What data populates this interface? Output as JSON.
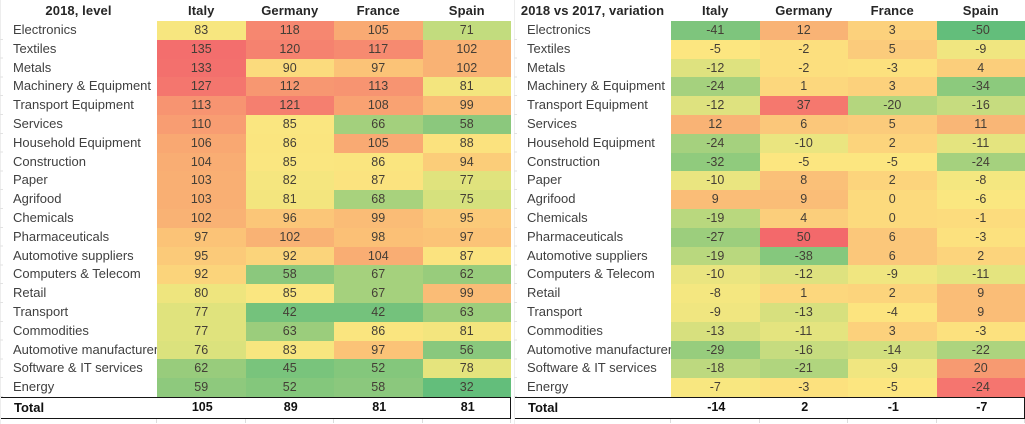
{
  "page": {
    "background": "#ffffff"
  },
  "chart_data": [
    {
      "type": "heatmap",
      "title": "2018, level",
      "columns": [
        "Italy",
        "Germany",
        "France",
        "Spain"
      ],
      "rows": [
        "Electronics",
        "Textiles",
        "Metals",
        "Machinery & Equipment",
        "Transport Equipment",
        "Services",
        "Household Equipment",
        "Construction",
        "Paper",
        "Agrifood",
        "Chemicals",
        "Pharmaceuticals",
        "Automotive suppliers",
        "Computers & Telecom",
        "Retail",
        "Transport",
        "Commodities",
        "Automotive manufacturers",
        "Software & IT services",
        "Energy"
      ],
      "values": [
        [
          83,
          118,
          105,
          71
        ],
        [
          135,
          120,
          117,
          102
        ],
        [
          133,
          90,
          97,
          102
        ],
        [
          127,
          112,
          113,
          81
        ],
        [
          113,
          121,
          108,
          99
        ],
        [
          110,
          85,
          66,
          58
        ],
        [
          106,
          86,
          105,
          88
        ],
        [
          104,
          85,
          86,
          94
        ],
        [
          103,
          82,
          87,
          77
        ],
        [
          103,
          81,
          68,
          75
        ],
        [
          102,
          96,
          99,
          95
        ],
        [
          97,
          102,
          98,
          97
        ],
        [
          95,
          92,
          104,
          87
        ],
        [
          92,
          58,
          67,
          62
        ],
        [
          80,
          85,
          67,
          99
        ],
        [
          77,
          42,
          42,
          63
        ],
        [
          77,
          63,
          86,
          81
        ],
        [
          76,
          83,
          97,
          56
        ],
        [
          62,
          45,
          52,
          78
        ],
        [
          59,
          52,
          58,
          32
        ]
      ],
      "total_label": "Total",
      "totals": [
        105,
        89,
        81,
        81
      ],
      "value_range": [
        32,
        135
      ],
      "color_scale_stops": [
        [
          32,
          "#63BE7B"
        ],
        [
          42,
          "#74C27C"
        ],
        [
          52,
          "#84C77C"
        ],
        [
          58,
          "#8BC87D"
        ],
        [
          63,
          "#9BCD7C"
        ],
        [
          68,
          "#A8D27D"
        ],
        [
          71,
          "#C2DC7E"
        ],
        [
          77,
          "#E0E37D"
        ],
        [
          81,
          "#F3E57E"
        ],
        [
          84,
          "#F9E780"
        ],
        [
          88,
          "#FBE27E"
        ],
        [
          92,
          "#FBD47B"
        ],
        [
          97,
          "#FBC377"
        ],
        [
          100,
          "#FAB975"
        ],
        [
          103,
          "#F9AF73"
        ],
        [
          107,
          "#F9A572"
        ],
        [
          113,
          "#F79471"
        ],
        [
          121,
          "#F57F6F"
        ],
        [
          128,
          "#F4756E"
        ],
        [
          135,
          "#F36E6D"
        ]
      ],
      "overrides": []
    },
    {
      "type": "heatmap",
      "title": "2018 vs 2017, variation",
      "columns": [
        "Italy",
        "Germany",
        "France",
        "Spain"
      ],
      "rows": [
        "Electronics",
        "Textiles",
        "Metals",
        "Machinery & Equipment",
        "Transport Equipment",
        "Services",
        "Household Equipment",
        "Construction",
        "Paper",
        "Agrifood",
        "Chemicals",
        "Pharmaceuticals",
        "Automotive suppliers",
        "Computers & Telecom",
        "Retail",
        "Transport",
        "Commodities",
        "Automotive manufacturers",
        "Software & IT services",
        "Energy"
      ],
      "values": [
        [
          -41,
          12,
          3,
          -50
        ],
        [
          -5,
          -2,
          5,
          -9
        ],
        [
          -12,
          -2,
          -3,
          4
        ],
        [
          -24,
          1,
          3,
          -34
        ],
        [
          -12,
          37,
          -20,
          -16
        ],
        [
          12,
          6,
          5,
          11
        ],
        [
          -24,
          -10,
          2,
          -11
        ],
        [
          -32,
          -5,
          -5,
          -24
        ],
        [
          -10,
          8,
          2,
          -8
        ],
        [
          9,
          9,
          0,
          -6
        ],
        [
          -19,
          4,
          0,
          -1
        ],
        [
          -27,
          50,
          6,
          -3
        ],
        [
          -19,
          -38,
          6,
          2
        ],
        [
          -10,
          -12,
          -9,
          -11
        ],
        [
          -8,
          1,
          2,
          9
        ],
        [
          -9,
          -13,
          -4,
          9
        ],
        [
          -13,
          -11,
          3,
          -3
        ],
        [
          -29,
          -16,
          -14,
          -22
        ],
        [
          -18,
          -21,
          -9,
          20
        ],
        [
          -7,
          -3,
          -5,
          -24
        ]
      ],
      "total_label": "Total",
      "totals": [
        -14,
        2,
        -1,
        -7
      ],
      "value_range": [
        -50,
        50
      ],
      "color_scale_stops": [
        [
          -50,
          "#63BE7B"
        ],
        [
          -41,
          "#7EC57D"
        ],
        [
          -38,
          "#85C87D"
        ],
        [
          -32,
          "#90CB7D"
        ],
        [
          -27,
          "#9CCE7D"
        ],
        [
          -24,
          "#A5D17E"
        ],
        [
          -20,
          "#B4D67E"
        ],
        [
          -16,
          "#C6DC7F"
        ],
        [
          -13,
          "#D7E07E"
        ],
        [
          -11,
          "#E4E47F"
        ],
        [
          -9,
          "#F0E680"
        ],
        [
          -7,
          "#F8E780"
        ],
        [
          -5,
          "#FCE680"
        ],
        [
          -3,
          "#FCE17E"
        ],
        [
          -1,
          "#FCDC7D"
        ],
        [
          0,
          "#FCDA7D"
        ],
        [
          2,
          "#FCD47C"
        ],
        [
          4,
          "#FBCE7B"
        ],
        [
          6,
          "#FBC77A"
        ],
        [
          9,
          "#FABD77"
        ],
        [
          12,
          "#F9B375"
        ],
        [
          16,
          "#F8A673"
        ],
        [
          20,
          "#F79A71"
        ],
        [
          28,
          "#F68870"
        ],
        [
          37,
          "#F5786E"
        ],
        [
          50,
          "#F3696B"
        ]
      ],
      "overrides": [
        {
          "row": 19,
          "col": 3,
          "color": "#F5756F"
        }
      ]
    }
  ],
  "style_colors": {
    "scale_green": "#63BE7B",
    "scale_yellow": "#FFEB84",
    "scale_red": "#F8696B",
    "total_border": "#151515",
    "gridline": "#dcdcdc"
  }
}
